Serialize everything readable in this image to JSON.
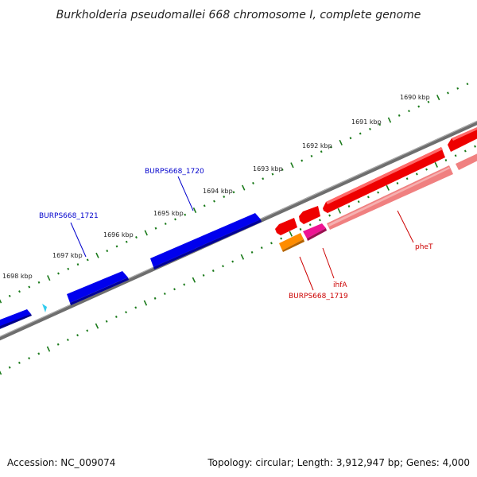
{
  "title": "Burkholderia pseudomallei 668 chromosome I, complete genome",
  "footer": {
    "accession": "Accession: NC_009074",
    "summary": "Topology: circular; Length: 3,912,947 bp; Genes: 4,000"
  },
  "ticks": [
    "1690 kbp",
    "1691 kbp",
    "1692 kbp",
    "1693 kbp",
    "1694 kbp",
    "1695 kbp",
    "1696 kbp",
    "1697 kbp",
    "1698 kbp"
  ],
  "gene_labels": {
    "b1720": "BURPS668_1720",
    "b1721": "BURPS668_1721",
    "phet": "pheT",
    "ihfa": "ihfA",
    "b1719": "BURPS668_1719"
  },
  "colors": {
    "forward": "#0000ee",
    "reverse": "#ee0000",
    "reverse_light": "#f08080",
    "orange": "#ff8c00",
    "magenta": "#ee1493",
    "backbone": "#888888",
    "ticks": "#1a7a1a",
    "label_blue": "#0000cc",
    "label_red": "#cc0000"
  }
}
